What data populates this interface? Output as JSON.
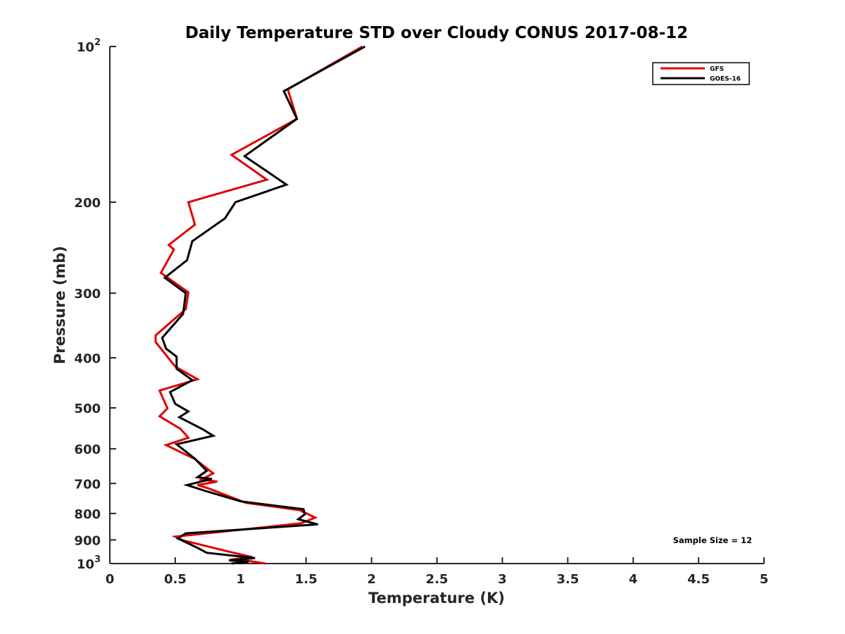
{
  "chart_data": {
    "type": "line",
    "title": "Daily Temperature STD over Cloudy CONUS 2017-08-12",
    "xlabel": "Temperature (K)",
    "ylabel": "Pressure (mb)",
    "xlim": [
      0,
      5
    ],
    "ylim": [
      100,
      1000
    ],
    "y_scale": "log",
    "y_reversed": true,
    "grid": false,
    "legend_position": "top-right",
    "x_ticks": [
      "0",
      "0.5",
      "1",
      "1.5",
      "2",
      "2.5",
      "3",
      "3.5",
      "4",
      "4.5",
      "5"
    ],
    "y_ticks": [
      {
        "value": 100,
        "base": "10",
        "exp": "2"
      },
      {
        "value": 200,
        "text": "200"
      },
      {
        "value": 300,
        "text": "300"
      },
      {
        "value": 400,
        "text": "400"
      },
      {
        "value": 500,
        "text": "500"
      },
      {
        "value": 600,
        "text": "600"
      },
      {
        "value": 700,
        "text": "700"
      },
      {
        "value": 800,
        "text": "800"
      },
      {
        "value": 900,
        "text": "900"
      },
      {
        "value": 1000,
        "base": "10",
        "exp": "3"
      }
    ],
    "annotation": "Sample Size = 12",
    "series": [
      {
        "name": "GFS",
        "color": "#e00000",
        "points": [
          [
            1.93,
            100
          ],
          [
            1.36,
            121
          ],
          [
            1.43,
            138
          ],
          [
            0.93,
            162
          ],
          [
            1.2,
            181
          ],
          [
            0.6,
            200
          ],
          [
            0.65,
            221
          ],
          [
            0.45,
            242
          ],
          [
            0.49,
            247
          ],
          [
            0.39,
            274
          ],
          [
            0.6,
            299
          ],
          [
            0.58,
            322
          ],
          [
            0.35,
            362
          ],
          [
            0.35,
            373
          ],
          [
            0.5,
            416
          ],
          [
            0.67,
            440
          ],
          [
            0.38,
            463
          ],
          [
            0.44,
            501
          ],
          [
            0.38,
            519
          ],
          [
            0.54,
            549
          ],
          [
            0.6,
            571
          ],
          [
            0.43,
            590
          ],
          [
            0.65,
            628
          ],
          [
            0.79,
            669
          ],
          [
            0.7,
            688
          ],
          [
            0.82,
            694
          ],
          [
            0.67,
            705
          ],
          [
            0.75,
            715
          ],
          [
            1.04,
            763
          ],
          [
            1.45,
            788
          ],
          [
            1.57,
            815
          ],
          [
            1.46,
            836
          ],
          [
            0.5,
            887
          ],
          [
            0.56,
            902
          ],
          [
            0.92,
            950
          ],
          [
            1.09,
            972
          ],
          [
            0.92,
            983
          ],
          [
            1.07,
            989
          ],
          [
            1.19,
            1000
          ]
        ]
      },
      {
        "name": "GOES-16",
        "color": "#000000",
        "points": [
          [
            1.95,
            100
          ],
          [
            1.33,
            122
          ],
          [
            1.43,
            138
          ],
          [
            1.03,
            163
          ],
          [
            1.35,
            185
          ],
          [
            0.96,
            200
          ],
          [
            0.88,
            215
          ],
          [
            0.63,
            238
          ],
          [
            0.59,
            259
          ],
          [
            0.42,
            280
          ],
          [
            0.58,
            300
          ],
          [
            0.56,
            329
          ],
          [
            0.4,
            366
          ],
          [
            0.43,
            384
          ],
          [
            0.51,
            398
          ],
          [
            0.51,
            420
          ],
          [
            0.63,
            442
          ],
          [
            0.46,
            466
          ],
          [
            0.5,
            491
          ],
          [
            0.6,
            508
          ],
          [
            0.53,
            521
          ],
          [
            0.71,
            550
          ],
          [
            0.79,
            566
          ],
          [
            0.51,
            588
          ],
          [
            0.65,
            627
          ],
          [
            0.74,
            662
          ],
          [
            0.67,
            681
          ],
          [
            0.78,
            686
          ],
          [
            0.59,
            705
          ],
          [
            0.74,
            725
          ],
          [
            1.0,
            758
          ],
          [
            1.48,
            785
          ],
          [
            1.49,
            803
          ],
          [
            1.44,
            821
          ],
          [
            1.59,
            840
          ],
          [
            0.58,
            874
          ],
          [
            0.52,
            894
          ],
          [
            0.68,
            935
          ],
          [
            0.74,
            953
          ],
          [
            1.11,
            976
          ],
          [
            0.91,
            986
          ],
          [
            1.06,
            992
          ],
          [
            0.93,
            1000
          ]
        ]
      }
    ]
  }
}
